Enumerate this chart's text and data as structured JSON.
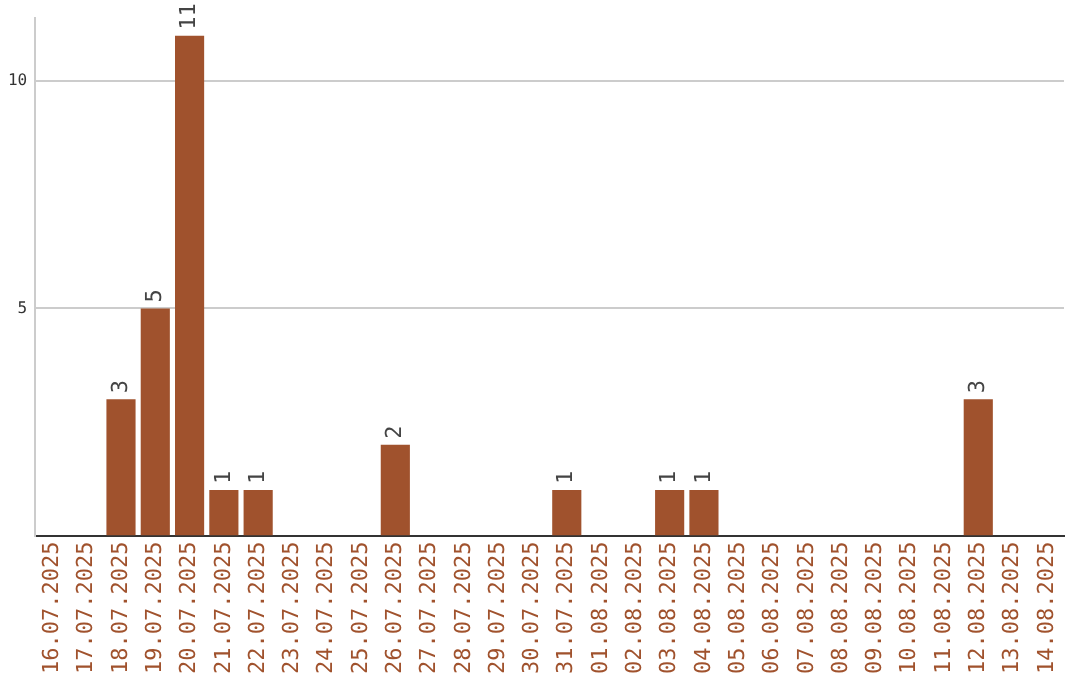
{
  "chart_data": {
    "type": "bar",
    "categories": [
      "16.07.2025",
      "17.07.2025",
      "18.07.2025",
      "19.07.2025",
      "20.07.2025",
      "21.07.2025",
      "22.07.2025",
      "23.07.2025",
      "24.07.2025",
      "25.07.2025",
      "26.07.2025",
      "27.07.2025",
      "28.07.2025",
      "29.07.2025",
      "30.07.2025",
      "31.07.2025",
      "01.08.2025",
      "02.08.2025",
      "03.08.2025",
      "04.08.2025",
      "05.08.2025",
      "06.08.2025",
      "07.08.2025",
      "08.08.2025",
      "09.08.2025",
      "10.08.2025",
      "11.08.2025",
      "12.08.2025",
      "13.08.2025",
      "14.08.2025"
    ],
    "values": [
      0,
      0,
      3,
      5,
      11,
      1,
      1,
      0,
      0,
      0,
      2,
      0,
      0,
      0,
      0,
      1,
      0,
      0,
      1,
      1,
      0,
      0,
      0,
      0,
      0,
      0,
      0,
      3,
      0,
      0
    ],
    "value_labels": [
      null,
      null,
      "3",
      "5",
      "11",
      "1",
      "1",
      null,
      null,
      null,
      "2",
      null,
      null,
      null,
      null,
      "1",
      null,
      null,
      "1",
      "1",
      null,
      null,
      null,
      null,
      null,
      null,
      null,
      "3",
      null,
      null
    ],
    "color": "#a0522d",
    "ylim": [
      0,
      11.4
    ],
    "yticks": [
      5,
      10
    ],
    "grid": "y",
    "legend": false
  }
}
